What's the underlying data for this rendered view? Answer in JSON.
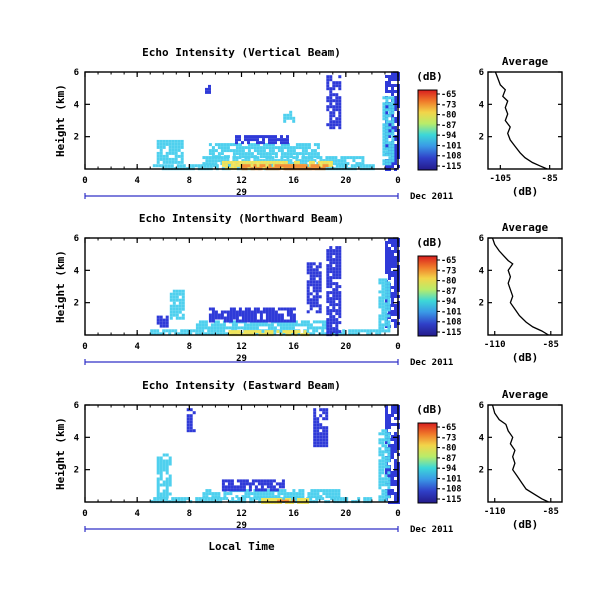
{
  "chart_data": [
    {
      "type": "heatmap",
      "title": "Echo Intensity (Vertical Beam)",
      "ylabel": "Height (km)",
      "xlabel": "",
      "x_ticks": [
        "0",
        "4",
        "8",
        "12",
        "16",
        "20",
        "0"
      ],
      "y_ticks": [
        "6",
        "4",
        "2"
      ],
      "xlim": [
        0,
        24
      ],
      "ylim": [
        0,
        6
      ],
      "day_label": "29",
      "month_label": "Dec 2011",
      "colorbar": {
        "title": "(dB)",
        "ticks": [
          "-65",
          "-73",
          "-80",
          "-87",
          "-94",
          "-101",
          "-108",
          "-115"
        ]
      },
      "echo_regions": [
        {
          "x": [
            5.2,
            22.4
          ],
          "y": [
            0,
            0.3
          ],
          "level": "cyan"
        },
        {
          "x": [
            9.0,
            21.4
          ],
          "y": [
            0.3,
            0.8
          ],
          "level": "cyan"
        },
        {
          "x": [
            10.5,
            19.0
          ],
          "y": [
            0,
            0.5
          ],
          "level": "yellow"
        },
        {
          "x": [
            12.0,
            18.5
          ],
          "y": [
            0,
            0.3
          ],
          "level": "orange"
        },
        {
          "x": [
            9.5,
            18.0
          ],
          "y": [
            0.8,
            1.6
          ],
          "level": "cyan"
        },
        {
          "x": [
            11.5,
            15.5
          ],
          "y": [
            1.6,
            2.1
          ],
          "level": "blue"
        },
        {
          "x": [
            5.5,
            7.5
          ],
          "y": [
            0.5,
            1.8
          ],
          "level": "cyan"
        },
        {
          "x": [
            18.5,
            19.5
          ],
          "y": [
            2.5,
            5.8
          ],
          "level": "blue"
        },
        {
          "x": [
            23.0,
            24.0
          ],
          "y": [
            0,
            6.0
          ],
          "level": "blue"
        },
        {
          "x": [
            22.8,
            23.6
          ],
          "y": [
            0.3,
            4.5
          ],
          "level": "cyan"
        },
        {
          "x": [
            15.2,
            15.9
          ],
          "y": [
            3.0,
            3.6
          ],
          "level": "cyan"
        },
        {
          "x": [
            9.2,
            9.6
          ],
          "y": [
            4.8,
            5.2
          ],
          "level": "blue"
        }
      ],
      "profile": {
        "title": "Average",
        "xlabel": "(dB)",
        "x_ticks": [
          "-105",
          "-85"
        ],
        "xlim": [
          -110,
          -80
        ],
        "ylim": [
          0,
          6
        ],
        "y_ticks": [
          "6",
          "4",
          "2"
        ],
        "points": [
          [
            -107,
            6.0
          ],
          [
            -106,
            5.6
          ],
          [
            -105,
            5.2
          ],
          [
            -103,
            4.9
          ],
          [
            -104,
            4.5
          ],
          [
            -102,
            4.2
          ],
          [
            -103,
            3.8
          ],
          [
            -102,
            3.4
          ],
          [
            -103,
            3.0
          ],
          [
            -101,
            2.6
          ],
          [
            -102,
            2.2
          ],
          [
            -101,
            1.8
          ],
          [
            -99,
            1.4
          ],
          [
            -97,
            1.0
          ],
          [
            -95,
            0.7
          ],
          [
            -92,
            0.4
          ],
          [
            -89,
            0.2
          ],
          [
            -86,
            0.0
          ]
        ]
      }
    },
    {
      "type": "heatmap",
      "title": "Echo Intensity (Northward Beam)",
      "ylabel": "Height (km)",
      "xlabel": "",
      "x_ticks": [
        "0",
        "4",
        "8",
        "12",
        "16",
        "20",
        "0"
      ],
      "y_ticks": [
        "6",
        "4",
        "2"
      ],
      "xlim": [
        0,
        24
      ],
      "ylim": [
        0,
        6
      ],
      "day_label": "29",
      "month_label": "Dec 2011",
      "colorbar": {
        "title": "(dB)",
        "ticks": [
          "-65",
          "-73",
          "-80",
          "-87",
          "-94",
          "-101",
          "-108",
          "-115"
        ]
      },
      "echo_regions": [
        {
          "x": [
            5.0,
            22.5
          ],
          "y": [
            0,
            0.35
          ],
          "level": "cyan"
        },
        {
          "x": [
            8.5,
            18.5
          ],
          "y": [
            0.35,
            0.9
          ],
          "level": "cyan"
        },
        {
          "x": [
            11.0,
            17.0
          ],
          "y": [
            0,
            0.3
          ],
          "level": "yellow"
        },
        {
          "x": [
            9.5,
            16.0
          ],
          "y": [
            0.9,
            1.7
          ],
          "level": "blue"
        },
        {
          "x": [
            6.5,
            7.5
          ],
          "y": [
            1.0,
            2.8
          ],
          "level": "cyan"
        },
        {
          "x": [
            17.0,
            18.0
          ],
          "y": [
            1.5,
            4.5
          ],
          "level": "blue"
        },
        {
          "x": [
            18.5,
            19.5
          ],
          "y": [
            0,
            5.5
          ],
          "level": "blue"
        },
        {
          "x": [
            23.0,
            24.0
          ],
          "y": [
            0.5,
            6.0
          ],
          "level": "blue"
        },
        {
          "x": [
            22.5,
            23.2
          ],
          "y": [
            0.2,
            3.5
          ],
          "level": "cyan"
        },
        {
          "x": [
            5.5,
            6.2
          ],
          "y": [
            0.5,
            1.2
          ],
          "level": "blue"
        }
      ],
      "profile": {
        "title": "Average",
        "xlabel": "(dB)",
        "x_ticks": [
          "-110",
          "-85"
        ],
        "xlim": [
          -113,
          -80
        ],
        "ylim": [
          0,
          6
        ],
        "y_ticks": [
          "6",
          "4",
          "2"
        ],
        "points": [
          [
            -111,
            6.0
          ],
          [
            -110,
            5.6
          ],
          [
            -108,
            5.2
          ],
          [
            -106,
            4.9
          ],
          [
            -104,
            4.6
          ],
          [
            -102,
            4.4
          ],
          [
            -104,
            4.0
          ],
          [
            -103,
            3.6
          ],
          [
            -104,
            3.2
          ],
          [
            -103,
            2.8
          ],
          [
            -102,
            2.4
          ],
          [
            -103,
            2.0
          ],
          [
            -101,
            1.6
          ],
          [
            -99,
            1.2
          ],
          [
            -96,
            0.8
          ],
          [
            -93,
            0.5
          ],
          [
            -89,
            0.25
          ],
          [
            -86,
            0.0
          ]
        ]
      }
    },
    {
      "type": "heatmap",
      "title": "Echo Intensity (Eastward Beam)",
      "ylabel": "Height (km)",
      "xlabel": "Local Time",
      "x_ticks": [
        "0",
        "4",
        "8",
        "12",
        "16",
        "20",
        "0"
      ],
      "y_ticks": [
        "6",
        "4",
        "2"
      ],
      "xlim": [
        0,
        24
      ],
      "ylim": [
        0,
        6
      ],
      "day_label": "29",
      "month_label": "Dec 2011",
      "colorbar": {
        "title": "(dB)",
        "ticks": [
          "-65",
          "-73",
          "-80",
          "-87",
          "-94",
          "-101",
          "-108",
          "-115"
        ]
      },
      "echo_regions": [
        {
          "x": [
            5.0,
            22.0
          ],
          "y": [
            0,
            0.3
          ],
          "level": "cyan"
        },
        {
          "x": [
            9.0,
            19.5
          ],
          "y": [
            0.3,
            0.8
          ],
          "level": "cyan"
        },
        {
          "x": [
            13.5,
            17.0
          ],
          "y": [
            0,
            0.25
          ],
          "level": "yellow"
        },
        {
          "x": [
            14.5,
            16.0
          ],
          "y": [
            0,
            0.15
          ],
          "level": "orange"
        },
        {
          "x": [
            10.5,
            15.5
          ],
          "y": [
            0.8,
            1.4
          ],
          "level": "blue"
        },
        {
          "x": [
            5.5,
            6.5
          ],
          "y": [
            0.3,
            3.0
          ],
          "level": "cyan"
        },
        {
          "x": [
            17.5,
            18.5
          ],
          "y": [
            3.5,
            5.8
          ],
          "level": "blue"
        },
        {
          "x": [
            23.0,
            24.0
          ],
          "y": [
            0,
            6.0
          ],
          "level": "blue"
        },
        {
          "x": [
            22.5,
            23.2
          ],
          "y": [
            0.2,
            4.5
          ],
          "level": "cyan"
        },
        {
          "x": [
            7.8,
            8.3
          ],
          "y": [
            4.5,
            5.8
          ],
          "level": "blue"
        }
      ],
      "profile": {
        "title": "Average",
        "xlabel": "(dB)",
        "x_ticks": [
          "-110",
          "-85"
        ],
        "xlim": [
          -113,
          -80
        ],
        "ylim": [
          0,
          6
        ],
        "y_ticks": [
          "6",
          "4",
          "2"
        ],
        "points": [
          [
            -111,
            6.0
          ],
          [
            -110,
            5.5
          ],
          [
            -108,
            5.1
          ],
          [
            -105,
            4.8
          ],
          [
            -104,
            4.4
          ],
          [
            -102,
            4.0
          ],
          [
            -103,
            3.6
          ],
          [
            -101,
            3.2
          ],
          [
            -102,
            2.8
          ],
          [
            -101,
            2.4
          ],
          [
            -102,
            2.0
          ],
          [
            -100,
            1.6
          ],
          [
            -98,
            1.2
          ],
          [
            -96,
            0.8
          ],
          [
            -92,
            0.45
          ],
          [
            -89,
            0.2
          ],
          [
            -86,
            0.0
          ]
        ]
      }
    }
  ],
  "colors": {
    "blue": "#2f3ad8",
    "cyan": "#4fd0ee",
    "yellow": "#f0e45a",
    "orange": "#f4903a",
    "colorbar_stops": [
      "#d81e1e",
      "#f07a2a",
      "#f2d54a",
      "#b8ec6a",
      "#3cd8d8",
      "#3a9ae6",
      "#3040c8",
      "#241a8a"
    ]
  }
}
